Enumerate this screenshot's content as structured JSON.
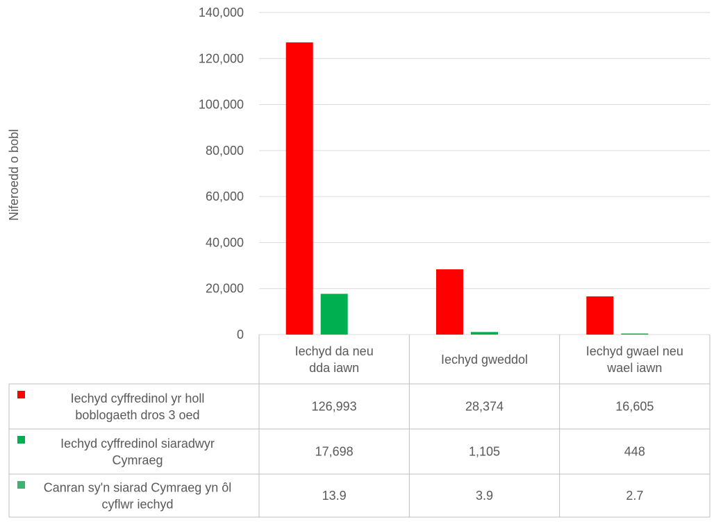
{
  "chart_data": {
    "type": "bar",
    "ylabel": "Niferoedd o bobl",
    "ylim": [
      0,
      140000
    ],
    "yticks": [
      0,
      20000,
      40000,
      60000,
      80000,
      100000,
      120000,
      140000
    ],
    "ytick_labels": [
      "0",
      "20,000",
      "40,000",
      "60,000",
      "80,000",
      "100,000",
      "120,000",
      "140,000"
    ],
    "grid": true,
    "legend": "data-table-left",
    "categories": [
      [
        "Iechyd da neu",
        "dda iawn"
      ],
      [
        "Iechyd gweddol"
      ],
      [
        "Iechyd gwael neu",
        "wael iawn"
      ]
    ],
    "series": [
      {
        "name_lines": [
          "Iechyd cyffredinol yr holl",
          "boblogaeth dros 3 oed"
        ],
        "color": "#ff0000",
        "values": [
          126993,
          28374,
          16605
        ],
        "labels": [
          "126,993",
          "28,374",
          "16,605"
        ]
      },
      {
        "name_lines": [
          "Iechyd cyffredinol siaradwyr",
          "Cymraeg"
        ],
        "color": "#00b050",
        "values": [
          17698,
          1105,
          448
        ],
        "labels": [
          "17,698",
          "1,105",
          "448"
        ]
      },
      {
        "name_lines": [
          "Canran sy'n siarad Cymraeg yn ôl",
          "cyflwr iechyd"
        ],
        "color": "#3cb371",
        "values": [
          13.9,
          3.9,
          2.7
        ],
        "labels": [
          "13.9",
          "3.9",
          "2.7"
        ]
      }
    ]
  }
}
